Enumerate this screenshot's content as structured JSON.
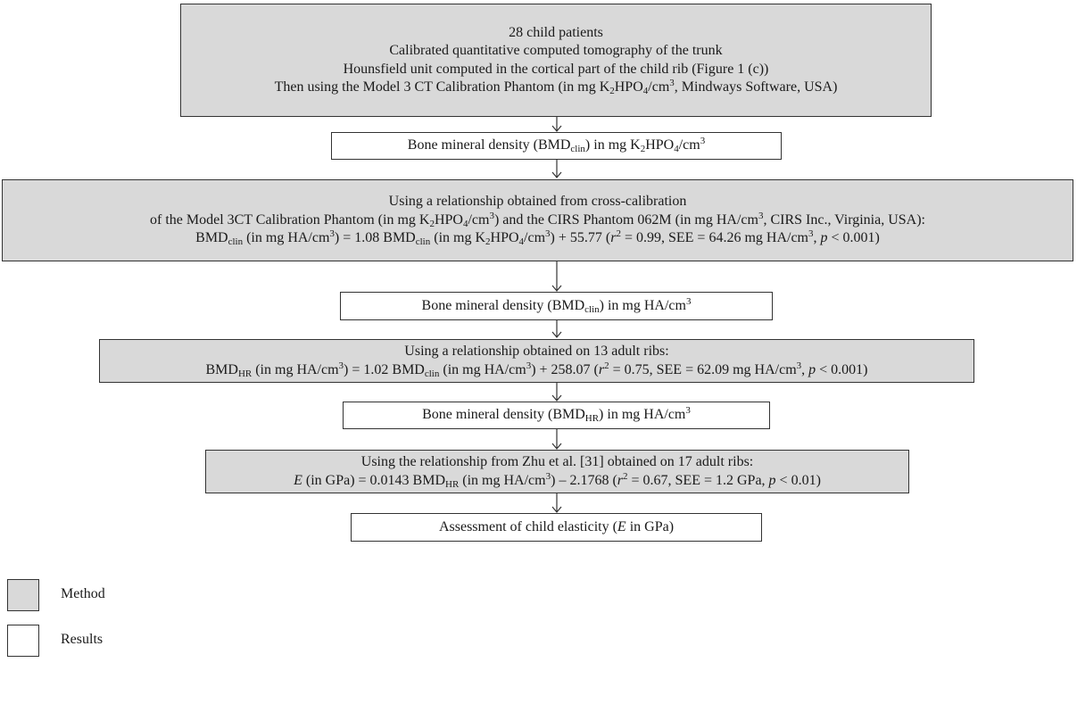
{
  "colors": {
    "method_fill": "#d9d9d9",
    "result_fill": "#ffffff",
    "border": "#333333"
  },
  "box1": {
    "line1": "28 child patients",
    "line2": "Calibrated quantitative computed tomography of the trunk",
    "line3": "Hounsfield unit computed in the cortical part of the child rib (Figure 1 (c))",
    "line4_a": "Then using the Model 3 CT Calibration Phantom (in mg K",
    "line4_sub1": "2",
    "line4_b": "HPO",
    "line4_sub2": "4",
    "line4_c": "/cm",
    "line4_sup": "3",
    "line4_d": ", Mindways Software, USA)"
  },
  "box2": {
    "a": "Bone mineral density (BMD",
    "sub1": "clin",
    "b": ") in mg K",
    "sub2": "2",
    "c": "HPO",
    "sub3": "4",
    "d": "/cm",
    "sup": "3"
  },
  "box3": {
    "line1": "Using a relationship obtained from cross-calibration",
    "line2_a": "of the Model 3CT Calibration Phantom (in mg K",
    "line2_sub1": "2",
    "line2_b": "HPO",
    "line2_sub2": "4",
    "line2_c": "/cm",
    "line2_sup1": "3",
    "line2_d": ") and the CIRS Phantom 062M (in mg HA/cm",
    "line2_sup2": "3",
    "line2_e": ", CIRS Inc., Virginia, USA):",
    "line3_a": "BMD",
    "line3_sub1": "clin",
    "line3_b": " (in mg HA/cm",
    "line3_sup1": "3",
    "line3_c": ") = 1.08 BMD",
    "line3_sub2": "clin",
    "line3_d": " (in mg K",
    "line3_sub3": "2",
    "line3_e": "HPO",
    "line3_sub4": "4",
    "line3_f": "/cm",
    "line3_sup2": "3",
    "line3_g": ") + 55.77 (",
    "line3_r": "r",
    "line3_sup3": "2",
    "line3_h": " = 0.99, SEE = 64.26 mg HA/cm",
    "line3_sup4": "3",
    "line3_i": ", ",
    "line3_p": "p",
    "line3_j": " < 0.001)"
  },
  "box4": {
    "a": "Bone mineral density (BMD",
    "sub1": "clin",
    "b": ") in mg HA/cm",
    "sup": "3"
  },
  "box5": {
    "line1": "Using a relationship obtained on 13 adult ribs:",
    "line2_a": "BMD",
    "line2_sub1": "HR",
    "line2_b": " (in mg HA/cm",
    "line2_sup1": "3",
    "line2_c": ") = 1.02 BMD",
    "line2_sub2": "clin",
    "line2_d": " (in mg HA/cm",
    "line2_sup2": "3",
    "line2_e": ") + 258.07 (",
    "line2_r": "r",
    "line2_sup3": "2",
    "line2_f": " = 0.75, SEE = 62.09 mg HA/cm",
    "line2_sup4": "3",
    "line2_g": ", ",
    "line2_p": "p",
    "line2_h": " < 0.001)"
  },
  "box6": {
    "a": "Bone mineral density (BMD",
    "sub1": "HR",
    "b": ") in mg HA/cm",
    "sup": "3"
  },
  "box7": {
    "line1": "Using the relationship from Zhu et al. [31] obtained on 17 adult ribs:",
    "line2_E": "E",
    "line2_a": " (in GPa) = 0.0143 BMD",
    "line2_sub1": "HR",
    "line2_b": " (in mg HA/cm",
    "line2_sup1": "3",
    "line2_c": ") – 2.1768 (",
    "line2_r": "r",
    "line2_sup2": "2",
    "line2_d": " = 0.67, SEE = 1.2 GPa, ",
    "line2_p": "p",
    "line2_e": " < 0.01)"
  },
  "box8": {
    "a": "Assessment of child elasticity (",
    "E": "E",
    "b": " in GPa)"
  },
  "legend": {
    "method_label": "Method",
    "results_label": "Results"
  }
}
